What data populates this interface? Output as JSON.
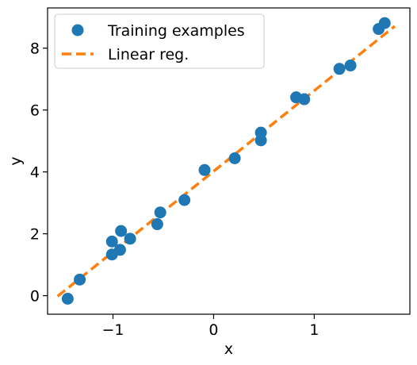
{
  "chart_data": {
    "type": "scatter",
    "xlabel": "x",
    "ylabel": "y",
    "xlim": [
      -1.65,
      1.95
    ],
    "ylim": [
      -0.6,
      9.3
    ],
    "xticks": [
      -1,
      0,
      1
    ],
    "xtick_labels": [
      "−1",
      "0",
      "1"
    ],
    "yticks": [
      0,
      2,
      4,
      6,
      8
    ],
    "ytick_labels": [
      "0",
      "2",
      "4",
      "6",
      "8"
    ],
    "grid": false,
    "legend": "top-left",
    "series": [
      {
        "name": "Training examples",
        "type": "scatter",
        "color": "#1f77b4",
        "x": [
          -1.45,
          -1.33,
          -1.01,
          -1.01,
          -0.93,
          -0.92,
          -0.83,
          -0.56,
          -0.53,
          -0.29,
          -0.09,
          0.21,
          0.47,
          0.47,
          0.82,
          0.9,
          1.25,
          1.36,
          1.64,
          1.7
        ],
        "y": [
          -0.1,
          0.52,
          1.33,
          1.75,
          1.48,
          2.09,
          1.84,
          2.31,
          2.69,
          3.09,
          4.06,
          4.44,
          5.02,
          5.27,
          6.41,
          6.35,
          7.33,
          7.44,
          8.62,
          8.81
        ]
      },
      {
        "name": "Linear reg.",
        "type": "line",
        "style": "dashed",
        "color": "#ff7f0e",
        "x": [
          -1.55,
          1.8
        ],
        "y": [
          -0.02,
          8.71
        ]
      }
    ]
  }
}
